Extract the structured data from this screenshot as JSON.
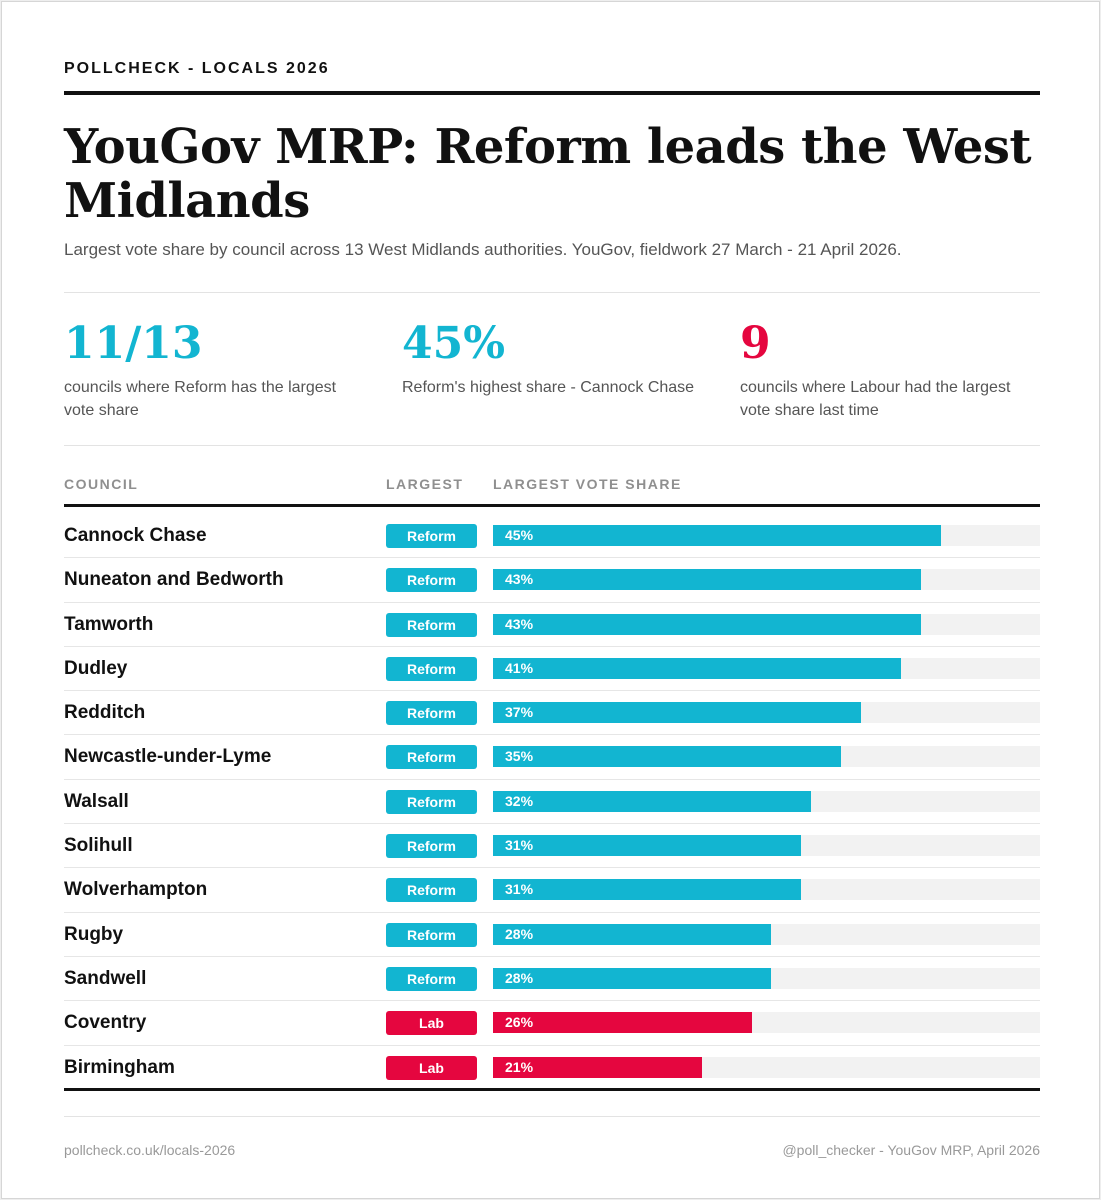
{
  "kicker": "POLLCHECK - LOCALS 2026",
  "title": "YouGov MRP: Reform leads the West Midlands",
  "subtitle": "Largest vote share by council across 13 West Midlands authorities. YouGov, fieldwork 27 March - 21 April 2026.",
  "stats": [
    {
      "value": "11/13",
      "label": "councils where Reform has the largest vote share",
      "color": "#12b5d1"
    },
    {
      "value": "45%",
      "label": "Reform's highest share - Cannock Chase",
      "color": "#12b5d1"
    },
    {
      "value": "9",
      "label": "councils where Labour had the largest vote share last time",
      "color": "#e5063f"
    }
  ],
  "colors": {
    "Reform": "#12b5d1",
    "Lab": "#e5063f"
  },
  "chart_data": {
    "type": "bar",
    "columns": [
      "COUNCIL",
      "LARGEST",
      "LARGEST VOTE SHARE"
    ],
    "xlim": [
      0,
      55
    ],
    "rows": [
      {
        "council": "Cannock Chase",
        "party": "Reform",
        "value": 45,
        "label": "45%"
      },
      {
        "council": "Nuneaton and Bedworth",
        "party": "Reform",
        "value": 43,
        "label": "43%"
      },
      {
        "council": "Tamworth",
        "party": "Reform",
        "value": 43,
        "label": "43%"
      },
      {
        "council": "Dudley",
        "party": "Reform",
        "value": 41,
        "label": "41%"
      },
      {
        "council": "Redditch",
        "party": "Reform",
        "value": 37,
        "label": "37%"
      },
      {
        "council": "Newcastle-under-Lyme",
        "party": "Reform",
        "value": 35,
        "label": "35%"
      },
      {
        "council": "Walsall",
        "party": "Reform",
        "value": 32,
        "label": "32%"
      },
      {
        "council": "Solihull",
        "party": "Reform",
        "value": 31,
        "label": "31%"
      },
      {
        "council": "Wolverhampton",
        "party": "Reform",
        "value": 31,
        "label": "31%"
      },
      {
        "council": "Rugby",
        "party": "Reform",
        "value": 28,
        "label": "28%"
      },
      {
        "council": "Sandwell",
        "party": "Reform",
        "value": 28,
        "label": "28%"
      },
      {
        "council": "Coventry",
        "party": "Lab",
        "value": 26,
        "label": "26%"
      },
      {
        "council": "Birmingham",
        "party": "Lab",
        "value": 21,
        "label": "21%"
      }
    ]
  },
  "footer": {
    "left": "pollcheck.co.uk/locals-2026",
    "right": "@poll_checker - YouGov MRP, April 2026"
  }
}
